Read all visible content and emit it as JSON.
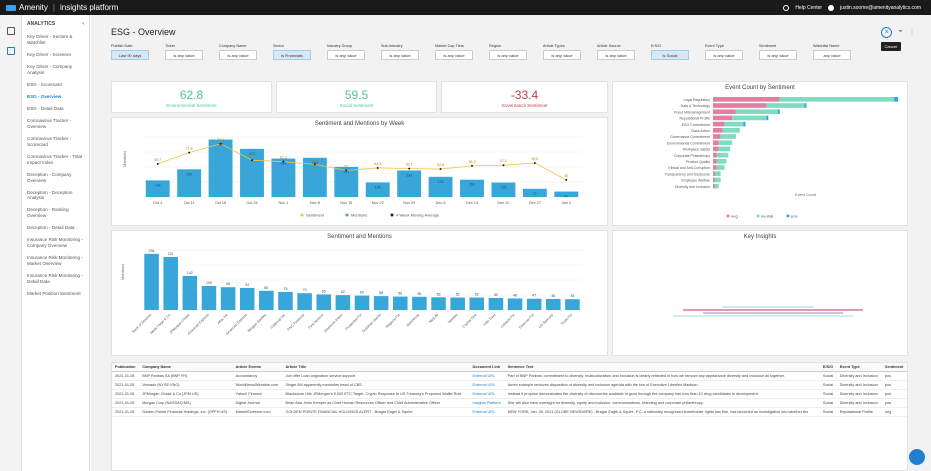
{
  "topbar": {
    "brand": "Amenity",
    "product": "insights platform",
    "help": "Help Center",
    "user": "justin.soome@amenityanalytics.com"
  },
  "sidebar": {
    "title": "ANALYTICS",
    "items": [
      "Key Driver - Sectors & Watchlist",
      "Key Driver - Screener",
      "Key Driver - Company Analysis",
      "ESG - Scorecard",
      "ESG - Overview",
      "ESG - Detail Data",
      "Coronavirus Tracker - Overview",
      "Coronavirus Tracker - Scorecard",
      "Coronavirus Tracker - Total Impact Index",
      "Deception - Company Overview",
      "Deception - Deception Analysis",
      "Deception - Ranking Overview",
      "Deception - Detail Data",
      "Insurance Risk Monitoring - Company Overview",
      "Insurance Risk Monitoring - Market Overview",
      "Insurance Risk Monitoring - Detail Data",
      "Market Position Sentiment"
    ]
  },
  "page": {
    "title": "ESG - Overview",
    "tooltip": "Cancel"
  },
  "filters": [
    {
      "label": "Publish Date",
      "value": "Last 90 days",
      "sel": true
    },
    {
      "label": "Ticker",
      "value": "is any value"
    },
    {
      "label": "Company Name",
      "value": "is any value"
    },
    {
      "label": "Sector",
      "value": "is Financials",
      "sel": true
    },
    {
      "label": "Industry Group",
      "value": "is any value"
    },
    {
      "label": "Sub-Industry",
      "value": "is any value"
    },
    {
      "label": "Market Cap Tiers",
      "value": "is any value"
    },
    {
      "label": "Region",
      "value": "is any value"
    },
    {
      "label": "Article Types",
      "value": "is any value"
    },
    {
      "label": "Article Source",
      "value": "is any value"
    },
    {
      "label": "E/S/G",
      "value": "is Social",
      "sel": true
    },
    {
      "label": "Event Type",
      "value": "is any value"
    },
    {
      "label": "Sentiment",
      "value": "is any value"
    },
    {
      "label": "Watchlist Name",
      "value": "any value"
    }
  ],
  "kpis": [
    {
      "value": "62.8",
      "label": "Environmental Sentiment",
      "color": "#4fc3a1"
    },
    {
      "value": "59.5",
      "label": "Social Sentiment",
      "color": "#4fc3a1"
    },
    {
      "value": "-33.4",
      "label": "Governance Sentiment",
      "color": "#c23a4f"
    }
  ],
  "chart_data": [
    {
      "type": "bar",
      "title": "Sentiment and Mentions by Week",
      "categories": [
        "Oct 4",
        "Oct 11",
        "Oct 18",
        "Oct 25",
        "Nov 1",
        "Nov 8",
        "Nov 15",
        "Nov 22",
        "Nov 29",
        "Dec 6",
        "Dec 13",
        "Dec 20",
        "Dec 27",
        "Jan 3"
      ],
      "series": [
        {
          "name": "Mentions",
          "values": [
            144,
            240,
            498,
            417,
            333,
            340,
            261,
            126,
            230,
            175,
            150,
            125,
            71,
            47
          ]
        },
        {
          "name": "Sentiment",
          "values": [
            58.7,
            71.8,
            82.1,
            62.9,
            61.2,
            58.1,
            51.0,
            53.9,
            53.1,
            52.6,
            56.3,
            57.1,
            59.6,
            40.0
          ]
        }
      ],
      "legend": [
        "Sentiment",
        "Mentions",
        "4 Week Moving Average"
      ],
      "ylabel": "Mentions"
    },
    {
      "type": "bar",
      "title": "Sentiment and Mentions",
      "categories": [
        "Bank of America",
        "Wells Fargo & Co",
        "JPMorgan Chase",
        "American Express",
        "Aflac Inc",
        "American Express",
        "Morgan Stanley",
        "Citigroup Inc",
        "PNC Financial",
        "First Horizon",
        "American Intern",
        "Prudential Fin",
        "Goldman Sachs",
        "Regions Fin",
        "Synchrony",
        "MetLife",
        "Nasdaq",
        "Capital One",
        "Fifth Third",
        "Citizens Fin",
        "Discover Fin",
        "US Bancorp",
        "Truist Fin"
      ],
      "values": [
        234,
        221,
        142,
        100,
        95,
        92,
        80,
        75,
        70,
        65,
        62,
        60,
        58,
        56,
        55,
        53,
        52,
        52,
        50,
        48,
        47,
        46,
        45
      ],
      "ylabel": "Mentions"
    },
    {
      "type": "bar",
      "title": "Event Count by Sentiment",
      "categories": [
        "Legal Regulatory",
        "Data & Technology",
        "Fraud Mismanagement",
        "Reputational Profile",
        "ESG Commitment",
        "Class Action",
        "Governance Commitment",
        "Environmental Commitment",
        "Workplace Safety",
        "Corporate Philanthropy",
        "Product Quality",
        "Ethical and Anti-Corruption",
        "Transparency and Disclosure",
        "Employee Welfare",
        "Diversity and Inclusion"
      ],
      "series": [
        {
          "name": "neg",
          "values": [
            35,
            28,
            12,
            10,
            6,
            5,
            4,
            3,
            3,
            2,
            2,
            2,
            1,
            1,
            1
          ]
        },
        {
          "name": "neutral",
          "values": [
            60,
            20,
            22,
            18,
            10,
            9,
            8,
            7,
            6,
            6,
            5,
            4,
            3,
            3,
            2
          ]
        },
        {
          "name": "pos",
          "values": [
            2,
            1,
            1,
            1,
            1,
            0,
            0,
            0,
            0,
            0,
            0,
            0,
            0,
            0,
            0
          ]
        }
      ],
      "xlabel": "Event Count"
    }
  ],
  "insights": {
    "title": "Key Insights"
  },
  "table": {
    "headers": [
      "Publication",
      "Company Name",
      "Article Events",
      "Article Title",
      "Document Link",
      "Sentence Text",
      "E/S/G",
      "Event Type",
      "Sentiment"
    ],
    "rows": [
      [
        "2021-01-05",
        "BNP Paribas SA (BNP FR)",
        "Accountancy",
        "Job offer Loan origination service support",
        "External URL",
        "Part of BNP Paribas' commitment to diversity, multiculturalism and inclusion is clearly reflected in how we remove any appearance diversity and inclusion all together.",
        "Social",
        "Diversity and Inclusion",
        "pos"
      ],
      [
        "2021-01-05",
        "Vornado (NYSE:VNO)",
        "WorldNewsWireable.com",
        "Singer Bill apparently memories head of CBS",
        "External URL",
        "Amen example removes disposition of diversity and inclusion agenda with the tow of Executive Liberties Madison.",
        "Social",
        "Diversity and Inclusion",
        "pos"
      ],
      [
        "2021-01-05",
        "JPMorgan Chase & Co (JPM US)",
        "Yahoo! Finance",
        "Blackstone Hits JPMorgan's 5,000 ETC Target, Crypto Response to US Treasury's Proposed Wallet Rule",
        "External URL",
        "Instead it propose demonstrates the diversity of discoveries available to grow through the company has now than 10 drug candidates in development.",
        "Social",
        "Diversity and Inclusion",
        "pos"
      ],
      [
        "2021-01-05",
        "Morgan Corp (NASDAQ:MS)",
        "Digital Journal",
        "Brian Ada Joins Kemper as Chief Human Resources Officer and Chief Administrative Officer",
        "Insights Platform",
        "She will also have oversight for diversity, equity and inclusion, communications, branding and corporate philanthropy.",
        "Social",
        "Diversity and Inclusion",
        "pos"
      ],
      [
        "2021-01-05",
        "Golden Pointe Financial Holdings, Inc. (GPFH US)",
        "MarketScreener.com",
        "GOLDEN POINTE FINANCIAL HOLDINGS ALERT - Bragar Eagel & Squire",
        "External URL",
        "NEW YORK, Jan. 05, 2021 (GLOBE NEWSWIRE) - Bragar Eagel & Squire, P.C. a nationally recognized shareholder rights law firm, has launched an investigation into whether the",
        "Social",
        "Reputational Profile",
        "neg"
      ]
    ]
  }
}
